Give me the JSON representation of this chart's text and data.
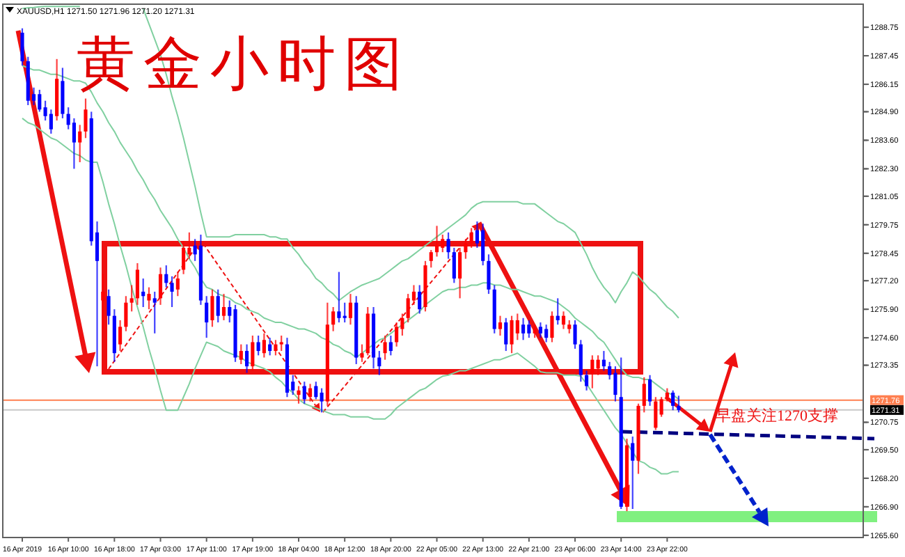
{
  "chart_data": {
    "type": "candlestick",
    "title": "黄金小时图",
    "subtitle": "XAUUSD,H1 1271.50 1271.96 1271.20 1271.31",
    "categories": [
      "16 Apr 2019",
      null,
      null,
      null,
      null,
      null,
      null,
      null,
      "16 Apr 10:00",
      null,
      null,
      null,
      null,
      null,
      null,
      null,
      "16 Apr 18:00",
      null,
      null,
      null,
      null,
      null,
      null,
      null,
      "17 Apr 03:00",
      null,
      null,
      null,
      null,
      null,
      null,
      null,
      "17 Apr 11:00",
      null,
      null,
      null,
      null,
      null,
      null,
      null,
      "17 Apr 19:00",
      null,
      null,
      null,
      null,
      null,
      null,
      null,
      "18 Apr 04:00",
      null,
      null,
      null,
      null,
      null,
      null,
      null,
      "18 Apr 12:00",
      null,
      null,
      null,
      null,
      null,
      null,
      null,
      "18 Apr 20:00",
      null,
      null,
      null,
      null,
      null,
      null,
      null,
      "22 Apr 05:00",
      null,
      null,
      null,
      null,
      null,
      null,
      null,
      "22 Apr 13:00",
      null,
      null,
      null,
      null,
      null,
      null,
      null,
      "22 Apr 21:00",
      null,
      null,
      null,
      null,
      null,
      null,
      null,
      "23 Apr 06:00",
      null,
      null,
      null,
      null,
      null,
      null,
      null,
      "23 Apr 14:00",
      null,
      null,
      null,
      null,
      null,
      null,
      null,
      "23 Apr 22:00",
      null,
      null
    ],
    "ylim": [
      1265.5,
      1289.8
    ],
    "yticks": [
      1288.75,
      1287.45,
      1286.15,
      {
        "value": 1284.9,
        "label": "1284.90"
      },
      {
        "value": 1283.6,
        "label": "1283.60"
      },
      {
        "value": 1282.3,
        "label": "1282.30"
      },
      1281.05,
      1279.75,
      1278.45,
      {
        "value": 1277.2,
        "label": "1277.20"
      },
      {
        "value": 1275.9,
        "label": "1275.90"
      },
      {
        "value": 1274.6,
        "label": "1274.60"
      },
      1273.35,
      1270.75,
      {
        "value": 1269.5,
        "label": "1269.50"
      },
      {
        "value": 1268.2,
        "label": "1268.20"
      },
      {
        "value": 1266.9,
        "label": "1266.90"
      },
      {
        "value": 1265.6,
        "label": "1265.60"
      }
    ],
    "series": [
      {
        "type": "candlestick",
        "colors": [
          "#0000ff",
          "#0000ff",
          "#0000ff",
          "#0000ff",
          "#0000ff",
          "#0000ff",
          "#ff0000",
          "#0000ff",
          "#0000ff",
          "#0000ff",
          "#ff0000",
          "#ff0000",
          "#0000ff",
          "#0000ff",
          "#ff0000",
          "#0000ff",
          "#0000ff",
          "#ff0000",
          "#ff0000",
          "#ff0000",
          "#ff0000",
          "#0000ff",
          "#ff0000",
          "#0000ff",
          "#ff0000",
          "#0000ff",
          "#0000ff",
          "#ff0000",
          "#ff0000",
          "#ff0000",
          "#0000ff",
          "#0000ff",
          "#0000ff",
          "#ff0000",
          "#0000ff",
          "#ff0000",
          "#0000ff",
          "#0000ff",
          "#ff0000",
          "#0000ff",
          "#ff0000",
          "#0000ff",
          "#ff0000",
          "#0000ff",
          "#ff0000",
          "#ff0000",
          "#0000ff",
          "#0000ff",
          "#ff0000",
          "#0000ff",
          "#ff0000",
          "#0000ff",
          "#0000ff",
          "#ff0000",
          "#ff0000",
          "#0000ff",
          "#0000ff",
          "#ff0000",
          "#0000ff",
          "#ff0000",
          "#ff0000",
          "#0000ff",
          "#0000ff",
          "#ff0000",
          "#0000ff",
          "#ff0000",
          "#ff0000",
          "#ff0000",
          "#ff0000",
          "#0000ff",
          "#ff0000",
          "#ff0000",
          "#ff0000",
          "#ff0000",
          "#0000ff",
          "#0000ff",
          "#ff0000",
          "#ff0000",
          "#ff0000",
          "#0000ff",
          "#0000ff",
          "#0000ff",
          "#0000ff",
          "#ff0000",
          "#0000ff",
          "#ff0000",
          "#ff0000",
          "#0000ff",
          "#0000ff",
          "#ff0000",
          "#0000ff",
          "#0000ff",
          "#ff0000",
          "#0000ff",
          "#ff0000",
          "#ff0000",
          "#0000ff",
          "#0000ff",
          "#0000ff",
          "#ff0000",
          "#ff0000",
          "#0000ff",
          "#0000ff",
          "#0000ff",
          "#0000ff",
          "#ff0000",
          "#0000ff",
          "#ff0000",
          "#ff0000",
          "#0000ff",
          "#ff0000",
          "#ff0000",
          "#ff0000",
          "#0000ff",
          "#0000ff"
        ],
        "ohlc": [
          [
            1288.5,
            1288.7,
            1287.0,
            1287.2
          ],
          [
            1287.2,
            1287.4,
            1285.2,
            1285.4
          ],
          [
            1285.7,
            1286.0,
            1285.2,
            1285.4
          ],
          [
            1285.7,
            1285.9,
            1284.9,
            1285.0
          ],
          [
            1285.1,
            1285.4,
            1284.5,
            1284.7
          ],
          [
            1284.8,
            1285.0,
            1283.9,
            1284.1
          ],
          [
            1284.7,
            1287.3,
            1284.5,
            1286.4
          ],
          [
            1286.3,
            1286.9,
            1284.6,
            1284.8
          ],
          [
            1284.8,
            1285.1,
            1284.1,
            1284.3
          ],
          [
            1284.4,
            1284.6,
            1282.3,
            1283.5
          ],
          [
            1283.5,
            1284.3,
            1282.6,
            1284.0
          ],
          [
            1284.0,
            1285.5,
            1283.7,
            1285.0
          ],
          [
            1284.6,
            1284.9,
            1278.8,
            1279.0
          ],
          [
            1279.4,
            1279.9,
            1273.3,
            1278.1
          ],
          [
            1276.3,
            1277.5,
            1275.0,
            1276.7
          ],
          [
            1276.5,
            1276.8,
            1275.2,
            1275.6
          ],
          [
            1275.6,
            1275.9,
            1273.5,
            1273.9
          ],
          [
            1274.3,
            1275.4,
            1274.0,
            1275.1
          ],
          [
            1275.1,
            1276.5,
            1274.9,
            1276.2
          ],
          [
            1276.2,
            1277.0,
            1275.8,
            1276.4
          ],
          [
            1276.4,
            1278.0,
            1276.1,
            1277.7
          ],
          [
            1276.7,
            1277.3,
            1276.0,
            1276.5
          ],
          [
            1276.3,
            1276.9,
            1275.9,
            1276.6
          ],
          [
            1276.4,
            1276.7,
            1274.8,
            1276.2
          ],
          [
            1276.4,
            1277.8,
            1276.1,
            1277.5
          ],
          [
            1277.5,
            1277.9,
            1276.9,
            1277.1
          ],
          [
            1277.1,
            1277.4,
            1276.0,
            1276.7
          ],
          [
            1276.8,
            1277.6,
            1276.5,
            1277.3
          ],
          [
            1277.7,
            1279.0,
            1277.5,
            1278.7
          ],
          [
            1278.4,
            1279.4,
            1278.2,
            1278.7
          ],
          [
            1278.8,
            1279.1,
            1278.1,
            1278.4
          ],
          [
            1278.8,
            1279.3,
            1276.1,
            1276.3
          ],
          [
            1276.2,
            1276.5,
            1274.6,
            1275.3
          ],
          [
            1275.4,
            1276.8,
            1275.1,
            1276.5
          ],
          [
            1276.5,
            1276.8,
            1275.3,
            1275.6
          ],
          [
            1275.6,
            1276.6,
            1275.4,
            1276.0
          ],
          [
            1276.0,
            1276.3,
            1275.3,
            1275.6
          ],
          [
            1275.9,
            1276.1,
            1273.5,
            1273.7
          ],
          [
            1273.6,
            1274.3,
            1273.4,
            1274.0
          ],
          [
            1274.0,
            1274.3,
            1273.0,
            1273.3
          ],
          [
            1273.3,
            1274.7,
            1273.1,
            1274.4
          ],
          [
            1274.4,
            1274.7,
            1273.8,
            1274.0
          ],
          [
            1273.9,
            1274.8,
            1273.7,
            1274.5
          ],
          [
            1274.3,
            1274.6,
            1273.8,
            1274.0
          ],
          [
            1274.0,
            1274.5,
            1273.8,
            1274.3
          ],
          [
            1274.3,
            1274.7,
            1274.0,
            1274.4
          ],
          [
            1274.3,
            1274.6,
            1271.9,
            1272.1
          ],
          [
            1272.6,
            1272.9,
            1272.0,
            1272.2
          ],
          [
            1272.0,
            1272.4,
            1271.6,
            1272.2
          ],
          [
            1272.4,
            1272.6,
            1271.6,
            1271.8
          ],
          [
            1271.9,
            1272.5,
            1271.7,
            1272.3
          ],
          [
            1272.4,
            1272.6,
            1271.8,
            1271.9
          ],
          [
            1272.1,
            1272.3,
            1271.2,
            1271.7
          ],
          [
            1271.7,
            1276.2,
            1271.5,
            1275.2
          ],
          [
            1275.2,
            1276.0,
            1274.9,
            1275.8
          ],
          [
            1275.8,
            1277.6,
            1275.3,
            1275.5
          ],
          [
            1275.6,
            1276.2,
            1275.3,
            1275.5
          ],
          [
            1275.5,
            1276.6,
            1275.2,
            1276.2
          ],
          [
            1276.2,
            1276.5,
            1273.4,
            1273.7
          ],
          [
            1273.7,
            1274.3,
            1273.5,
            1273.9
          ],
          [
            1273.9,
            1276.0,
            1273.8,
            1275.7
          ],
          [
            1275.7,
            1276.0,
            1273.2,
            1273.7
          ],
          [
            1273.7,
            1274.0,
            1272.9,
            1273.3
          ],
          [
            1273.9,
            1274.7,
            1273.6,
            1274.4
          ],
          [
            1274.4,
            1274.7,
            1273.8,
            1274.0
          ],
          [
            1274.4,
            1275.3,
            1274.2,
            1275.1
          ],
          [
            1275.0,
            1275.7,
            1274.7,
            1275.5
          ],
          [
            1275.5,
            1276.6,
            1275.3,
            1276.4
          ],
          [
            1276.3,
            1277.0,
            1276.1,
            1276.7
          ],
          [
            1276.7,
            1277.0,
            1275.7,
            1275.9
          ],
          [
            1276.0,
            1278.1,
            1275.8,
            1277.9
          ],
          [
            1278.1,
            1278.6,
            1277.8,
            1278.5
          ],
          [
            1278.5,
            1279.7,
            1278.3,
            1278.8
          ],
          [
            1278.7,
            1279.3,
            1278.5,
            1279.1
          ],
          [
            1279.1,
            1279.4,
            1278.2,
            1278.5
          ],
          [
            1278.5,
            1278.7,
            1277.1,
            1277.3
          ],
          [
            1277.3,
            1278.7,
            1276.4,
            1278.5
          ],
          [
            1278.5,
            1279.1,
            1278.2,
            1278.9
          ],
          [
            1278.9,
            1279.6,
            1278.7,
            1279.4
          ],
          [
            1279.5,
            1279.9,
            1278.7,
            1278.9
          ],
          [
            1279.5,
            1279.8,
            1277.9,
            1278.1
          ],
          [
            1278.1,
            1278.4,
            1276.6,
            1276.8
          ],
          [
            1276.8,
            1277.0,
            1274.8,
            1275.0
          ],
          [
            1275.0,
            1275.6,
            1274.7,
            1275.3
          ],
          [
            1275.3,
            1275.5,
            1274.0,
            1274.3
          ],
          [
            1274.3,
            1275.6,
            1273.9,
            1275.4
          ],
          [
            1274.8,
            1275.7,
            1274.5,
            1275.4
          ],
          [
            1275.2,
            1275.5,
            1274.5,
            1274.8
          ],
          [
            1275.2,
            1275.4,
            1274.6,
            1274.8
          ],
          [
            1274.8,
            1275.2,
            1274.6,
            1275.0
          ],
          [
            1275.1,
            1275.3,
            1274.6,
            1274.8
          ],
          [
            1275.0,
            1275.2,
            1274.4,
            1274.6
          ],
          [
            1274.6,
            1275.8,
            1274.4,
            1275.6
          ],
          [
            1275.6,
            1276.4,
            1275.2,
            1275.4
          ],
          [
            1275.2,
            1275.8,
            1275.0,
            1275.6
          ],
          [
            1275.0,
            1275.4,
            1274.8,
            1275.2
          ],
          [
            1275.2,
            1275.4,
            1274.1,
            1274.3
          ],
          [
            1274.3,
            1274.5,
            1272.6,
            1272.9
          ],
          [
            1272.9,
            1273.1,
            1272.2,
            1272.4
          ],
          [
            1273.0,
            1273.8,
            1272.3,
            1273.6
          ],
          [
            1273.2,
            1273.8,
            1272.9,
            1273.6
          ],
          [
            1273.6,
            1274.0,
            1273.1,
            1273.3
          ],
          [
            1273.3,
            1273.5,
            1272.7,
            1272.9
          ],
          [
            1273.0,
            1273.3,
            1271.7,
            1272.0
          ],
          [
            1271.9,
            1273.7,
            1266.8,
            1266.9
          ],
          [
            1266.9,
            1270.0,
            1266.7,
            1269.7
          ],
          [
            1269.8,
            1270.1,
            1266.8,
            1269.0
          ],
          [
            1269.0,
            1271.6,
            1268.4,
            1271.5
          ],
          [
            1271.5,
            1272.8,
            1271.2,
            1272.5
          ],
          [
            1272.7,
            1272.9,
            1271.5,
            1271.7
          ],
          [
            1270.5,
            1271.9,
            1270.4,
            1271.7
          ],
          [
            1271.1,
            1271.9,
            1271.0,
            1271.8
          ],
          [
            1271.9,
            1272.3,
            1271.7,
            1272.1
          ],
          [
            1272.1,
            1272.2,
            1271.3,
            1271.5
          ],
          [
            1271.5,
            1271.96,
            1271.2,
            1271.31
          ]
        ]
      },
      {
        "type": "line",
        "color": "#80d0a0",
        "values": [
          1289.6,
          1289.63,
          1289.65,
          1289.68,
          1289.7,
          1289.7,
          1289.7,
          1289.7,
          1289.7,
          1289.7,
          1289.7,
          null,
          null,
          null,
          null,
          null,
          null,
          null,
          null,
          null,
          null,
          1289.6,
          1288.9,
          1288.2,
          1287.5,
          1286.6,
          1285.6,
          1284.7,
          1283.7,
          1282.6,
          1281.5,
          1280.3,
          1279.2,
          1279.2,
          1279.2,
          1279.2,
          1279.2,
          1279.3,
          1279.3,
          1279.3,
          1279.3,
          1279.3,
          1279.3,
          1279.2,
          1279.2,
          1279.1,
          1279.1,
          1278.7,
          1278.4,
          1278.0,
          1277.7,
          1277.3,
          1277.1,
          1276.8,
          1276.6,
          1276.3,
          1276.5,
          1276.7,
          1276.85,
          1277.0,
          1277.1,
          1277.2,
          1277.3,
          1277.5,
          1277.7,
          1277.9,
          1278.1,
          1278.2,
          1278.4,
          1278.6,
          1278.8,
          1279.0,
          1279.2,
          1279.4,
          1279.6,
          1279.8,
          1280.0,
          1280.2,
          1280.5,
          1280.7,
          1280.8,
          1280.8,
          1280.8,
          1280.8,
          1280.8,
          1280.8,
          1280.8,
          1280.7,
          1280.7,
          1280.7,
          1280.5,
          1280.3,
          1280.1,
          1279.9,
          1279.8,
          1279.6,
          1279.4,
          1278.9,
          1278.4,
          1277.8,
          1277.3,
          1276.9,
          1276.6,
          1276.2,
          1276.7,
          1277.1,
          1277.6,
          1277.4,
          1277.1,
          1276.8,
          1276.6,
          1276.3,
          1276.0,
          1275.8,
          1275.5
        ]
      },
      {
        "type": "line",
        "color": "#80d0a0",
        "values": [
          1287.0,
          1286.9,
          1286.8,
          1286.8,
          1286.7,
          1286.6,
          1286.6,
          1286.5,
          1286.4,
          1286.3,
          1286.3,
          1286.2,
          1285.8,
          1285.3,
          1284.9,
          1284.4,
          1284.0,
          1283.5,
          1283.1,
          1282.7,
          1282.2,
          1281.8,
          1281.3,
          1280.9,
          1280.4,
          1280.0,
          1279.6,
          1279.1,
          1278.7,
          1278.2,
          1277.8,
          1277.3,
          1276.9,
          1276.8,
          1276.6,
          1276.5,
          1276.4,
          1276.2,
          1276.1,
          1275.9,
          1275.8,
          1275.7,
          1275.5,
          1275.4,
          1275.3,
          1275.3,
          1275.2,
          1275.1,
          1275.0,
          1275.0,
          1274.9,
          1274.8,
          1274.6,
          1274.5,
          1274.3,
          1274.2,
          1274.0,
          1273.9,
          1273.7,
          1273.9,
          1274.1,
          1274.3,
          1274.5,
          1274.6,
          1274.8,
          1275.0,
          1275.2,
          1275.4,
          1275.6,
          1275.8,
          1276.1,
          1276.3,
          1276.5,
          1276.7,
          1276.8,
          1276.8,
          1276.9,
          1276.9,
          1277.0,
          1277.0,
          1277.1,
          1277.1,
          1277.0,
          1277.0,
          1276.9,
          1276.8,
          1276.8,
          1276.7,
          1276.6,
          1276.5,
          1276.5,
          1276.4,
          1276.3,
          1276.2,
          1276.0,
          1275.8,
          1275.5,
          1275.3,
          1275.1,
          1274.9,
          1274.6,
          1274.4,
          1274.0,
          1273.6,
          1273.2,
          1272.9,
          1272.8,
          1272.8,
          1272.7,
          1272.7,
          1272.5,
          1272.3,
          1272.1,
          1272.0,
          1271.8
        ]
      },
      {
        "type": "line",
        "color": "#80d0a0",
        "values": [
          1284.6,
          1284.4,
          1284.3,
          1284.1,
          1283.9,
          1283.7,
          1283.6,
          1283.4,
          1283.2,
          1283.0,
          1282.9,
          1282.7,
          1282.6,
          1282.6,
          1281.7,
          1280.7,
          1279.8,
          1278.8,
          1277.9,
          1276.9,
          1276.0,
          1275.1,
          1274.1,
          1273.2,
          1272.2,
          1271.3,
          1271.3,
          1271.3,
          1271.9,
          1272.5,
          1273.2,
          1273.8,
          1274.4,
          1274.3,
          1274.2,
          1274.0,
          1273.9,
          1273.8,
          1273.7,
          1273.5,
          1273.4,
          1273.3,
          1273.2,
          1273.05,
          1272.8,
          1272.6,
          1272.3,
          1272.1,
          1271.8,
          1271.6,
          1271.5,
          1271.4,
          1271.3,
          1271.2,
          1271.1,
          1271.1,
          1271.1,
          1271.0,
          1271.0,
          1271.0,
          1271.0,
          1270.9,
          1270.9,
          1270.9,
          1271.1,
          1271.4,
          1271.6,
          1271.8,
          1272.0,
          1272.2,
          1272.3,
          1272.5,
          1272.7,
          1272.85,
          1272.9,
          1273.0,
          1273.1,
          1273.1,
          1273.2,
          1273.3,
          1273.4,
          1273.5,
          1273.6,
          1273.6,
          1273.7,
          1273.8,
          1273.9,
          1273.7,
          1273.5,
          1273.3,
          1273.05,
          1273.0,
          1273.0,
          1273.0,
          1272.9,
          1272.9,
          1272.9,
          1272.85,
          1272.5,
          1272.1,
          1271.7,
          1271.3,
          1270.9,
          1270.5,
          1270.2,
          1269.8,
          1269.4,
          1269.0,
          1268.9,
          1268.7,
          1268.6,
          1268.4,
          1268.4,
          1268.5,
          1268.5
        ]
      }
    ],
    "ref_lines": [
      {
        "axis": "y",
        "value": 1271.76,
        "label": "1271.76",
        "color": "#ff7f50"
      },
      {
        "axis": "y",
        "value": 1271.31,
        "label": "1271.31",
        "color": "#c8c8c8"
      }
    ],
    "annotations": [
      "早盘关注1270支撑"
    ]
  }
}
